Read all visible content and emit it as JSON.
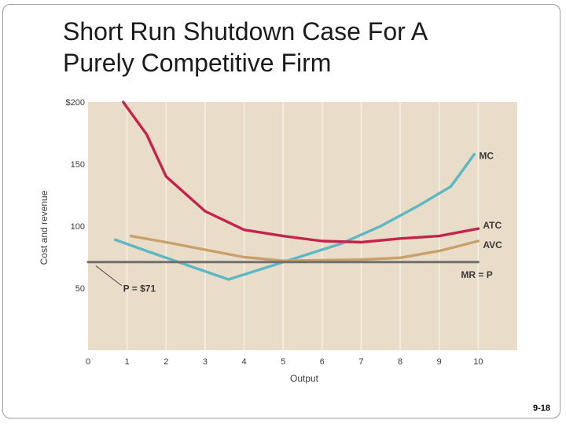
{
  "slide": {
    "title_line1": "Short Run Shutdown Case For A",
    "title_line2": "Purely Competitive Firm",
    "page_number": "9-18"
  },
  "colors": {
    "plot_background": "#e9dcc8",
    "mc": "#5bb8c4",
    "atc": "#c4244c",
    "avc": "#c9a06a",
    "mr": "#707070",
    "text": "#3a3a3a"
  },
  "chart_data": {
    "type": "line",
    "title": "",
    "xlabel": "Output",
    "ylabel": "Cost and revenue",
    "xlim": [
      0,
      11
    ],
    "ylim": [
      0,
      200
    ],
    "x_ticks": [
      {
        "value": 0,
        "label": "0"
      },
      {
        "value": 1,
        "label": "1"
      },
      {
        "value": 2,
        "label": "2"
      },
      {
        "value": 3,
        "label": "3"
      },
      {
        "value": 4,
        "label": "4"
      },
      {
        "value": 5,
        "label": "5"
      },
      {
        "value": 6,
        "label": "6"
      },
      {
        "value": 7,
        "label": "7"
      },
      {
        "value": 8,
        "label": "8"
      },
      {
        "value": 9,
        "label": "9"
      },
      {
        "value": 10,
        "label": "10"
      }
    ],
    "y_ticks": [
      {
        "value": 50,
        "label": "50"
      },
      {
        "value": 100,
        "label": "100"
      },
      {
        "value": 150,
        "label": "150"
      },
      {
        "value": 200,
        "label": "$200"
      }
    ],
    "grid": "vertical",
    "series": [
      {
        "name": "MC",
        "key": "mc",
        "points": [
          [
            0.7,
            89
          ],
          [
            1.5,
            80
          ],
          [
            2.5,
            69
          ],
          [
            3.6,
            57
          ],
          [
            4.5,
            66
          ],
          [
            5.5,
            76
          ],
          [
            6.5,
            86
          ],
          [
            7.5,
            100
          ],
          [
            8.5,
            117
          ],
          [
            9.3,
            132
          ],
          [
            9.9,
            158
          ]
        ]
      },
      {
        "name": "ATC",
        "key": "atc",
        "points": [
          [
            0.9,
            200
          ],
          [
            1.5,
            174
          ],
          [
            2,
            140
          ],
          [
            3,
            112
          ],
          [
            4,
            97
          ],
          [
            5,
            92
          ],
          [
            6,
            88
          ],
          [
            7,
            87
          ],
          [
            8,
            90
          ],
          [
            9,
            92
          ],
          [
            10,
            98
          ]
        ]
      },
      {
        "name": "AVC",
        "key": "avc",
        "points": [
          [
            1.1,
            92
          ],
          [
            2,
            87
          ],
          [
            3,
            81
          ],
          [
            4,
            75
          ],
          [
            5,
            72
          ],
          [
            6,
            72.5
          ],
          [
            7,
            73
          ],
          [
            8,
            74.5
          ],
          [
            9,
            80
          ],
          [
            10,
            88
          ]
        ]
      },
      {
        "name": "MR = P",
        "key": "mr",
        "points": [
          [
            0,
            71
          ],
          [
            10,
            71
          ]
        ]
      }
    ],
    "annotations": [
      {
        "text": "P = $71",
        "x": 0.9,
        "y": 47,
        "pointer_to": [
          0.2,
          68
        ]
      }
    ]
  }
}
